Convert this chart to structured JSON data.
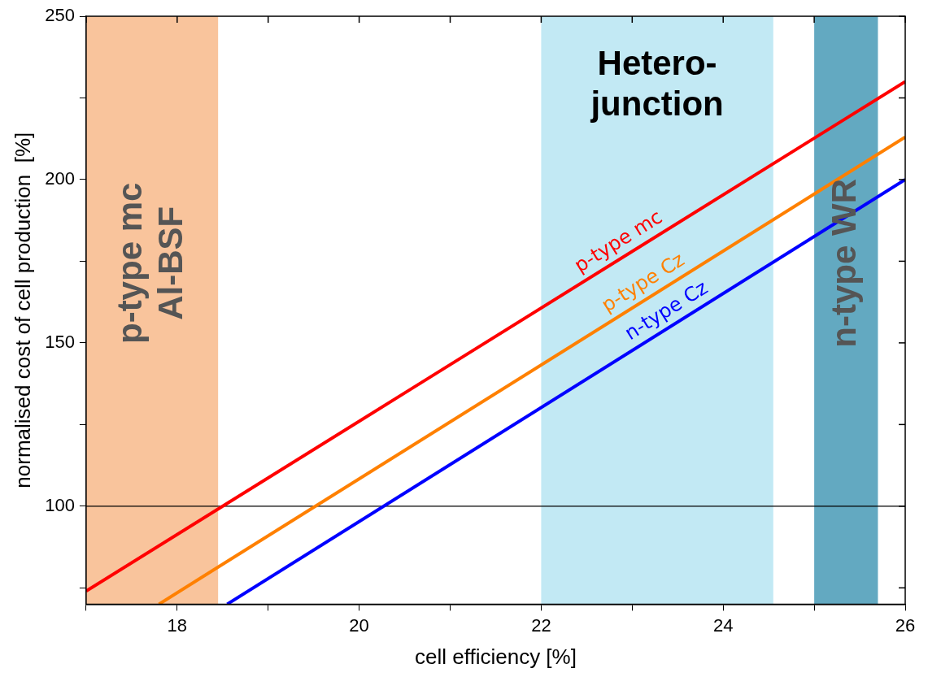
{
  "chart_data": {
    "type": "line",
    "xlabel": "cell efficiency [%]",
    "ylabel": "normalised cost of cell production  [%]",
    "xlim": [
      17,
      26
    ],
    "ylim": [
      70,
      250
    ],
    "xticks": [
      {
        "value": 17,
        "label": null
      },
      18,
      {
        "value": 19,
        "label": null
      },
      20,
      {
        "value": 21,
        "label": null
      },
      22,
      {
        "value": 23,
        "label": null
      },
      24,
      {
        "value": 25,
        "label": null
      },
      26
    ],
    "yticks": [
      {
        "value": 75,
        "label": null
      },
      100,
      {
        "value": 125,
        "label": null
      },
      150,
      {
        "value": 175,
        "label": null
      },
      200,
      {
        "value": 225,
        "label": null
      },
      250
    ],
    "grid": false,
    "legend": false,
    "marker": "none",
    "line_style": "solid",
    "series": [
      {
        "name": "p-type mc",
        "color": "#ff0000",
        "x": [
          17,
          26
        ],
        "values": [
          74,
          230
        ]
      },
      {
        "name": "p-type Cz",
        "color": "#ff8000",
        "x": [
          17.8,
          26
        ],
        "values": [
          70,
          213
        ]
      },
      {
        "name": "n-type Cz",
        "color": "#0000ff",
        "x": [
          18.55,
          26
        ],
        "values": [
          70,
          200
        ]
      }
    ],
    "ref_lines": [
      {
        "axis": "y",
        "value": 100,
        "color": "#000000"
      }
    ],
    "bands": [
      {
        "axis": "x",
        "from": 17,
        "to": 18.45,
        "label": "p-type mc\nAl-BSF",
        "color": "#f9c49c"
      },
      {
        "axis": "x",
        "from": 22,
        "to": 24.55,
        "label": "Hetero-\njunction",
        "color": "#c2e9f4"
      },
      {
        "axis": "x",
        "from": 25,
        "to": 25.7,
        "label": "n-type WR",
        "color": "#63a9c1"
      }
    ]
  }
}
